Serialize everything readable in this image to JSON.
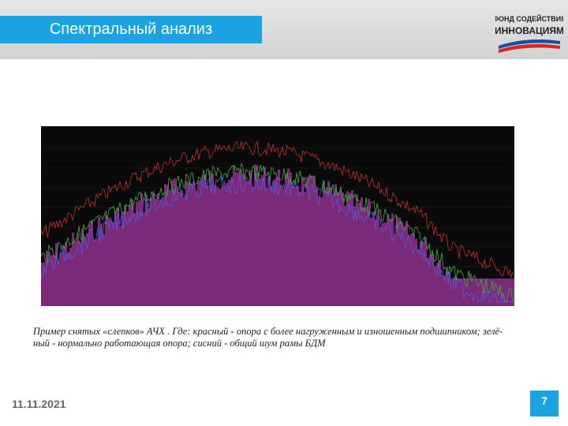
{
  "header": {
    "title": "Спектральный анализ",
    "logo": [
      "ФОНД СОДЕЙСТВИЯ",
      "ИННОВАЦИЯМ"
    ]
  },
  "figure": {
    "caption": [
      "Пример снятых «слепков» АЧХ . Где: красный - опора с более нагруженным и изношенным подшипником; зелё-",
      "ный - нормально работающая опора; сисний - общий шум рамы БДМ"
    ]
  },
  "footer": {
    "date": "11.11.2021",
    "page": "7"
  }
}
